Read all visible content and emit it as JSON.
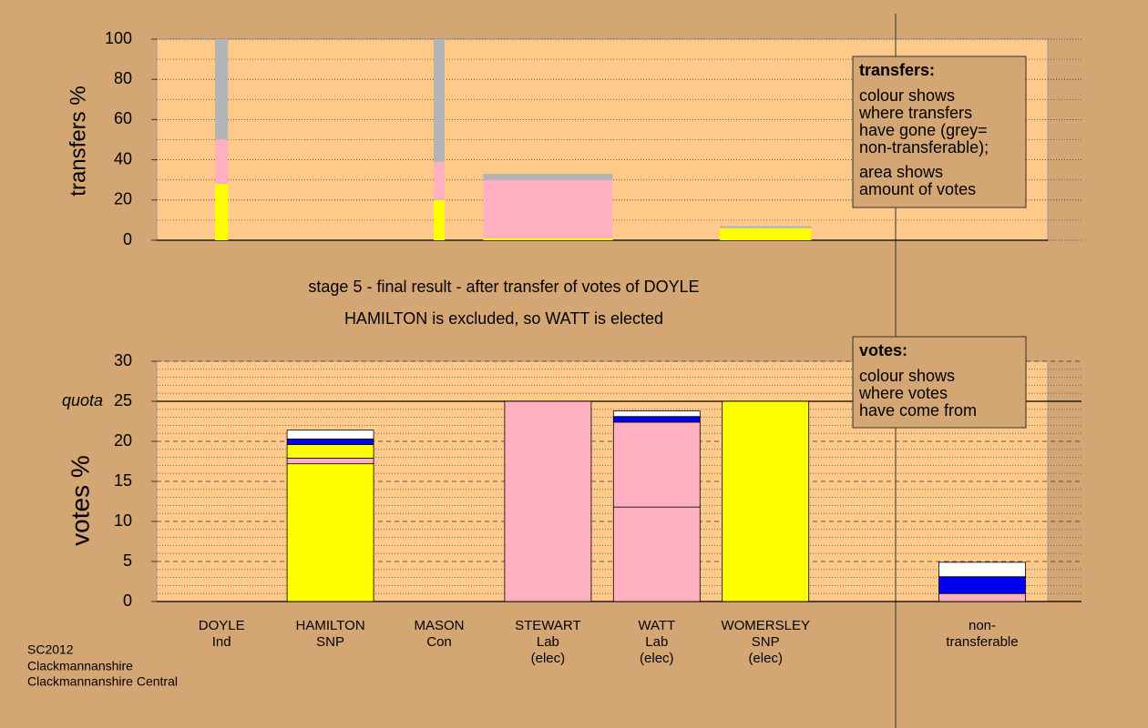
{
  "chart_data": [
    {
      "type": "bar",
      "ylabel": "transfers %",
      "ylim": [
        0,
        100
      ],
      "yticks": [
        0,
        20,
        40,
        60,
        80,
        100
      ],
      "minor_yticks": [
        10,
        30,
        50,
        70,
        90
      ],
      "note": {
        "title": "transfers:",
        "paragraphs": [
          [
            "colour shows",
            "where transfers",
            "have gone (grey=",
            "non-transferable);"
          ],
          [
            "area shows",
            "amount of votes"
          ]
        ]
      },
      "stacks": [
        {
          "width": 0.12,
          "segments": [
            {
              "color": "#ffff00",
              "value": 28
            },
            {
              "color": "#ffb0c0",
              "value": 22
            },
            {
              "color": "#b4b4b4",
              "value": 50
            }
          ]
        },
        null,
        {
          "width": 0.1,
          "segments": [
            {
              "color": "#ffff00",
              "value": 20
            },
            {
              "color": "#ffb0c0",
              "value": 19
            },
            {
              "color": "#b4b4b4",
              "value": 61
            }
          ]
        },
        {
          "width": 1.19,
          "segments": [
            {
              "color": "#ffff00",
              "value": 1
            },
            {
              "color": "#ffb0c0",
              "value": 29
            },
            {
              "color": "#b4b4b4",
              "value": 3
            }
          ]
        },
        null,
        {
          "width": 0.84,
          "segments": [
            {
              "color": "#ffff00",
              "value": 6
            },
            {
              "color": "#b4b4b4",
              "value": 1
            }
          ]
        }
      ]
    },
    {
      "type": "bar",
      "ylabel": "votes %",
      "ylim": [
        0,
        30
      ],
      "yticks": [
        0,
        5,
        10,
        15,
        20,
        25,
        30
      ],
      "minor_yticks": [
        1,
        2,
        3,
        4,
        6,
        7,
        8,
        9,
        11,
        12,
        13,
        14,
        16,
        17,
        18,
        19,
        21,
        22,
        23,
        24,
        26,
        27,
        28,
        29
      ],
      "quota": {
        "value": 25,
        "label": "quota"
      },
      "note": {
        "title": "votes:",
        "paragraphs": [
          [
            "colour shows",
            "where votes",
            "have come from"
          ]
        ]
      },
      "categories": [
        [
          "DOYLE",
          "Ind"
        ],
        [
          "HAMILTON",
          "SNP"
        ],
        [
          "MASON",
          "Con"
        ],
        [
          "STEWART",
          "Lab",
          "(elec)"
        ],
        [
          "WATT",
          "Lab",
          "(elec)"
        ],
        [
          "WOMERSLEY",
          "SNP",
          "(elec)"
        ]
      ],
      "stacks": [
        [
          {
            "color": "#ffff00",
            "value": 0
          }
        ],
        [
          {
            "color": "#ffff00",
            "value": 17.2
          },
          {
            "color": "#ffb0c0",
            "value": 0.7
          },
          {
            "color": "#ffff00",
            "value": 1.7
          },
          {
            "color": "#0000ee",
            "value": 0.7
          },
          {
            "color": "#ffffff",
            "value": 1.1
          }
        ],
        [
          {
            "color": "#ffff00",
            "value": 0
          }
        ],
        [
          {
            "color": "#ffb0c0",
            "value": 25
          }
        ],
        [
          {
            "color": "#ffb0c0",
            "value": 11.8
          },
          {
            "color": "#ffb0c0",
            "value": 10.6
          },
          {
            "color": "#0000ee",
            "value": 0.7
          },
          {
            "color": "#ffffff",
            "value": 0.7
          }
        ],
        [
          {
            "color": "#ffff00",
            "value": 25
          }
        ]
      ],
      "nontransferable": {
        "label": [
          "non-",
          "transferable"
        ],
        "segments": [
          {
            "color": "#ffb0c0",
            "value": 1
          },
          {
            "color": "#0000ee",
            "value": 2.1
          },
          {
            "color": "#ffffff",
            "value": 1.8
          }
        ]
      }
    }
  ],
  "annotations": [
    "stage 5 - final result - after transfer of votes of DOYLE",
    "HAMILTON is excluded, so WATT is elected"
  ],
  "footer": [
    "SC2012",
    "Clackmannanshire",
    "Clackmannanshire Central"
  ]
}
